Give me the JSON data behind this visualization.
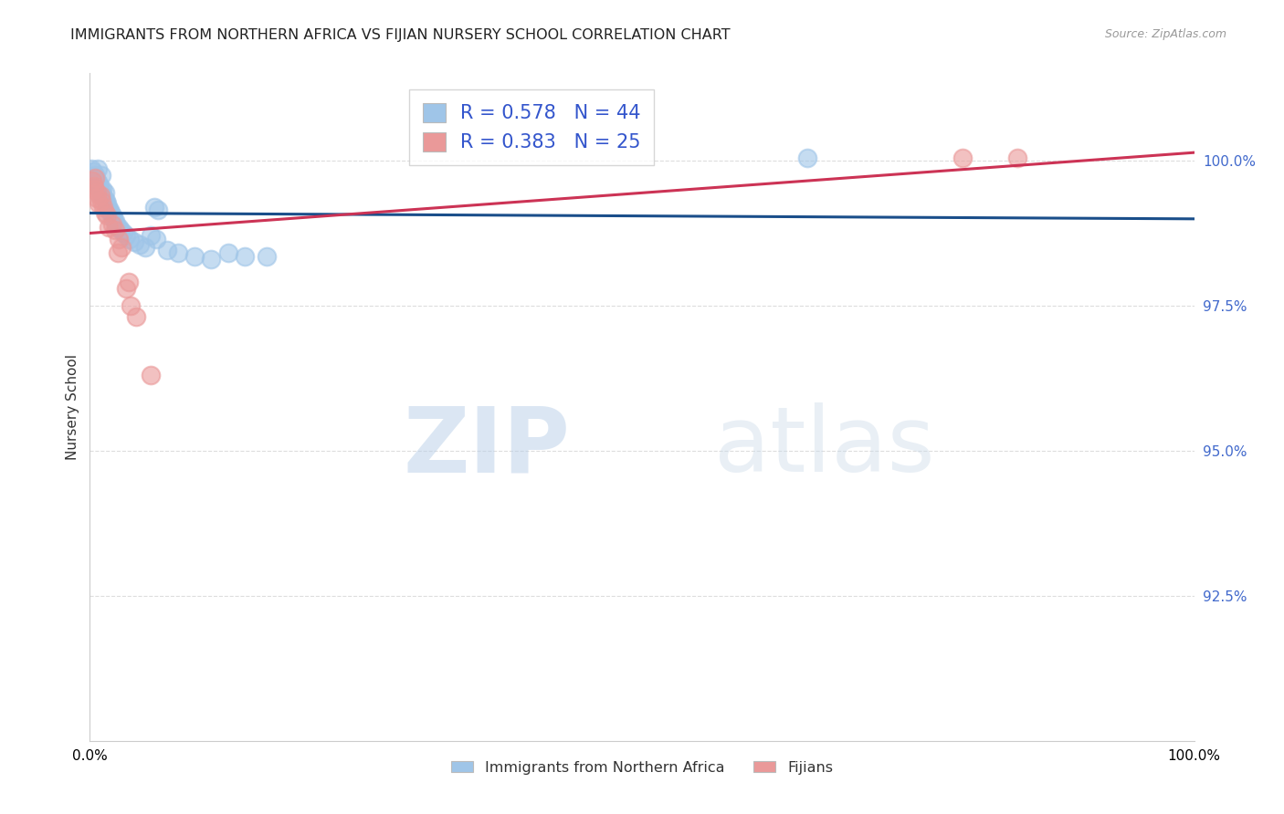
{
  "title": "IMMIGRANTS FROM NORTHERN AFRICA VS FIJIAN NURSERY SCHOOL CORRELATION CHART",
  "source": "Source: ZipAtlas.com",
  "ylabel_label": "Nursery School",
  "xlim": [
    0.0,
    100.0
  ],
  "ylim": [
    90.0,
    101.5
  ],
  "blue_R": 0.578,
  "blue_N": 44,
  "pink_R": 0.383,
  "pink_N": 25,
  "blue_label": "Immigrants from Northern Africa",
  "pink_label": "Fijians",
  "blue_color": "#9fc5e8",
  "pink_color": "#ea9999",
  "blue_line_color": "#1a4e8a",
  "pink_line_color": "#cc3355",
  "blue_scatter_x": [
    0.15,
    0.3,
    0.45,
    0.55,
    0.6,
    0.7,
    0.8,
    0.85,
    0.9,
    1.0,
    1.05,
    1.1,
    1.15,
    1.25,
    1.35,
    1.45,
    1.55,
    1.65,
    1.75,
    1.85,
    2.0,
    2.1,
    2.25,
    2.4,
    2.6,
    2.8,
    3.0,
    3.3,
    3.6,
    4.0,
    4.5,
    5.0,
    5.5,
    6.0,
    7.0,
    8.0,
    9.5,
    11.0,
    12.5,
    14.0,
    16.0,
    5.8,
    6.2,
    65.0
  ],
  "blue_scatter_y": [
    99.85,
    99.8,
    99.75,
    99.7,
    99.65,
    99.85,
    99.6,
    99.55,
    99.5,
    99.75,
    99.45,
    99.4,
    99.5,
    99.35,
    99.45,
    99.3,
    99.25,
    99.2,
    99.15,
    99.1,
    99.05,
    99.0,
    98.95,
    98.9,
    98.85,
    98.8,
    98.75,
    98.7,
    98.65,
    98.6,
    98.55,
    98.5,
    98.7,
    98.65,
    98.45,
    98.4,
    98.35,
    98.3,
    98.4,
    98.35,
    98.35,
    99.2,
    99.15,
    100.05
  ],
  "pink_scatter_x": [
    0.2,
    0.35,
    0.5,
    0.65,
    0.8,
    0.95,
    1.05,
    1.2,
    1.35,
    1.5,
    1.7,
    2.0,
    2.3,
    2.6,
    2.9,
    3.3,
    3.7,
    4.2,
    5.5,
    3.5,
    2.5,
    0.4,
    0.6,
    79.0,
    84.0
  ],
  "pink_scatter_y": [
    99.65,
    99.55,
    99.7,
    99.35,
    99.25,
    99.4,
    99.3,
    99.2,
    99.1,
    99.05,
    98.85,
    98.9,
    98.8,
    98.65,
    98.5,
    97.8,
    97.5,
    97.3,
    96.3,
    97.9,
    98.4,
    99.5,
    99.45,
    100.05,
    100.05
  ],
  "watermark_zip": "ZIP",
  "watermark_atlas": "atlas",
  "grid_color": "#dddddd",
  "title_fontsize": 11.5,
  "ytick_values": [
    92.5,
    95.0,
    97.5,
    100.0
  ],
  "ytick_labels": [
    "92.5%",
    "95.0%",
    "97.5%",
    "100.0%"
  ],
  "xtick_values": [
    0,
    25,
    50,
    75,
    100
  ],
  "xtick_labels": [
    "0.0%",
    "",
    "",
    "",
    "100.0%"
  ]
}
